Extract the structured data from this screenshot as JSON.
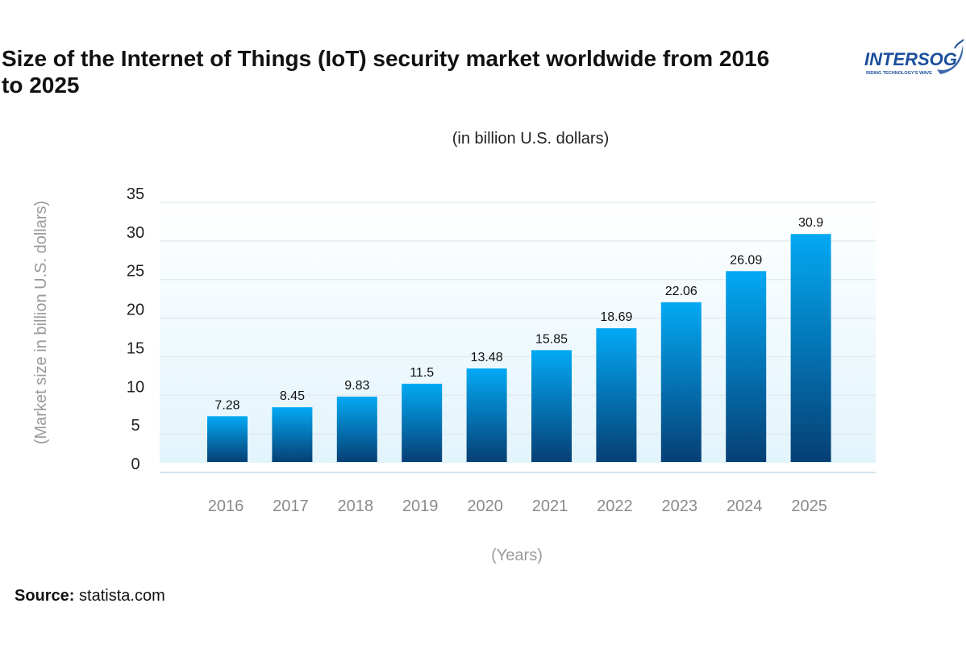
{
  "header": {
    "title": "Size of the Internet of Things (IoT) security market worldwide from 2016 to 2025"
  },
  "logo": {
    "text": "INTERSOG",
    "tagline": "RIDING TECHNOLOGY'S WAVE"
  },
  "footer": {
    "source_label": "Source:",
    "source_value": "statista.com"
  },
  "colors": {
    "bar_top": "#03a9f4",
    "bar_bottom": "#063f74",
    "plot_bg_bottom": "#e2f4fc",
    "grid": "#dfe8ee",
    "axis_text": "#8a8a8a",
    "logo_blue": "#1b4f9c"
  },
  "chart_data": {
    "type": "bar",
    "subtitle": "(in billion U.S. dollars)",
    "xlabel": "(Years)",
    "ylabel": "(Market size in billion U.S. dollars)",
    "ylim": [
      0,
      35
    ],
    "yticks": [
      "0",
      "5",
      "10",
      "15",
      "20",
      "25",
      "30",
      "35"
    ],
    "grid": true,
    "categories": [
      "2016",
      "2017",
      "2018",
      "2019",
      "2020",
      "2021",
      "2022",
      "2023",
      "2024",
      "2025"
    ],
    "values": [
      7.28,
      8.45,
      9.83,
      11.5,
      13.48,
      15.85,
      18.69,
      22.06,
      26.09,
      30.9
    ],
    "value_labels": [
      "7.28",
      "8.45",
      "9.83",
      "11.5",
      "13.48",
      "15.85",
      "18.69",
      "22.06",
      "26.09",
      "30.9"
    ]
  }
}
